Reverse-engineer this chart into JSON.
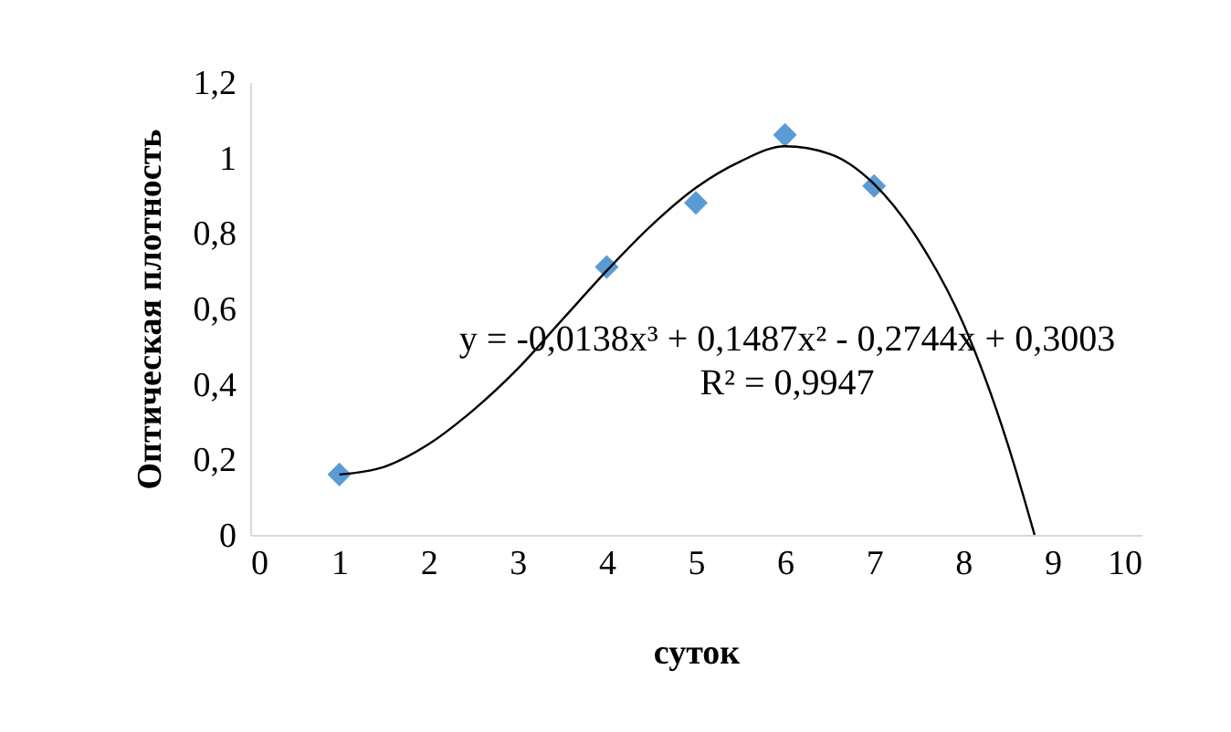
{
  "chart_data": {
    "type": "scatter",
    "xlabel": "суток",
    "ylabel": "Оптическая плотность",
    "xlim": [
      0,
      10
    ],
    "xticks": [
      0,
      1,
      2,
      3,
      4,
      5,
      6,
      7,
      8,
      9,
      10
    ],
    "ylim": [
      0,
      1.2
    ],
    "yticks": [
      0,
      {
        "value": 0.2,
        "label": "0,2"
      },
      {
        "value": 0.4,
        "label": "0,4"
      },
      {
        "value": 0.6,
        "label": "0,6"
      },
      {
        "value": 0.8,
        "label": "0,8"
      },
      1,
      {
        "value": 1.2,
        "label": "1,2"
      }
    ],
    "grid": false,
    "marker": "diamond",
    "series": [
      {
        "color": "#5b9bd5",
        "x": [
          1,
          4,
          5,
          6,
          7
        ],
        "values": [
          0.16,
          0.71,
          0.88,
          1.06,
          0.925
        ]
      },
      {
        "type": "line",
        "color": "#000000",
        "marker": "none",
        "line_style": "solid",
        "x": [
          1,
          1.5,
          2,
          2.5,
          3,
          3.5,
          4,
          4.5,
          5,
          5.5,
          6,
          6.5,
          7,
          7.5,
          8,
          8.5,
          8.8
        ],
        "values": [
          0.16,
          0.18,
          0.24,
          0.33,
          0.44,
          0.57,
          0.7,
          0.82,
          0.92,
          0.99,
          1.03,
          1.01,
          0.93,
          0.78,
          0.56,
          0.24,
          0
        ]
      }
    ],
    "annotations": [
      "y = -0,0138x³ + 0,1487x² - 0,2744x + 0,3003",
      "R² = 0,9947"
    ]
  }
}
